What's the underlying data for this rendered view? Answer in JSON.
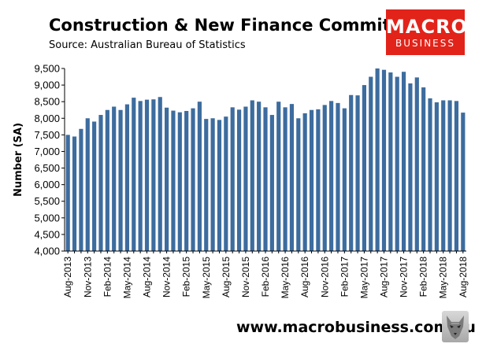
{
  "chart_data": {
    "type": "bar",
    "title": "Construction & New Finance Commitments",
    "subtitle": "Source: Australian Bureau of Statistics",
    "ylabel": "Number (SA)",
    "xlabel": "",
    "ylim": [
      4000,
      9500
    ],
    "yticks": [
      "4,000",
      "4,500",
      "5,000",
      "5,500",
      "6,000",
      "6,500",
      "7,000",
      "7,500",
      "8,000",
      "8,500",
      "9,000",
      "9,500"
    ],
    "grid": false,
    "bar_color": "#3d6c9e",
    "x_tick_labels": [
      "Aug-2013",
      "Nov-2013",
      "Feb-2014",
      "May-2014",
      "Aug-2014",
      "Nov-2014",
      "Feb-2015",
      "May-2015",
      "Aug-2015",
      "Nov-2015",
      "Feb-2016",
      "May-2016",
      "Aug-2016",
      "Nov-2016",
      "Feb-2017",
      "May-2017",
      "Aug-2017",
      "Nov-2017",
      "Feb-2018",
      "May-2018",
      "Aug-2018"
    ],
    "categories": [
      "Aug-2013",
      "Sep-2013",
      "Oct-2013",
      "Nov-2013",
      "Dec-2013",
      "Jan-2014",
      "Feb-2014",
      "Mar-2014",
      "Apr-2014",
      "May-2014",
      "Jun-2014",
      "Jul-2014",
      "Aug-2014",
      "Sep-2014",
      "Oct-2014",
      "Nov-2014",
      "Dec-2014",
      "Jan-2015",
      "Feb-2015",
      "Mar-2015",
      "Apr-2015",
      "May-2015",
      "Jun-2015",
      "Jul-2015",
      "Aug-2015",
      "Sep-2015",
      "Oct-2015",
      "Nov-2015",
      "Dec-2015",
      "Jan-2016",
      "Feb-2016",
      "Mar-2016",
      "Apr-2016",
      "May-2016",
      "Jun-2016",
      "Jul-2016",
      "Aug-2016",
      "Sep-2016",
      "Oct-2016",
      "Nov-2016",
      "Dec-2016",
      "Jan-2017",
      "Feb-2017",
      "Mar-2017",
      "Apr-2017",
      "May-2017",
      "Jun-2017",
      "Jul-2017",
      "Aug-2017",
      "Sep-2017",
      "Oct-2017",
      "Nov-2017",
      "Dec-2017",
      "Jan-2018",
      "Feb-2018",
      "Mar-2018",
      "Apr-2018",
      "May-2018",
      "Jun-2018",
      "Jul-2018",
      "Aug-2018"
    ],
    "values": [
      7500,
      7450,
      7680,
      8000,
      7900,
      8100,
      8250,
      8350,
      8250,
      8420,
      8620,
      8520,
      8560,
      8570,
      8640,
      8320,
      8230,
      8180,
      8220,
      8300,
      8500,
      7980,
      8000,
      7950,
      8050,
      8330,
      8260,
      8350,
      8540,
      8500,
      8330,
      8100,
      8500,
      8330,
      8430,
      8000,
      8150,
      8250,
      8270,
      8400,
      8520,
      8460,
      8300,
      8700,
      8690,
      9000,
      9250,
      9500,
      9460,
      9380,
      9250,
      9400,
      9050,
      9230,
      8930,
      8600,
      8480,
      8540,
      8540,
      8520,
      8170
    ]
  },
  "footer": {
    "url": "www.macrobusiness.com.au"
  },
  "logo": {
    "line1": "MACRO",
    "line2": "BUSINESS",
    "color": "#e2231a"
  }
}
